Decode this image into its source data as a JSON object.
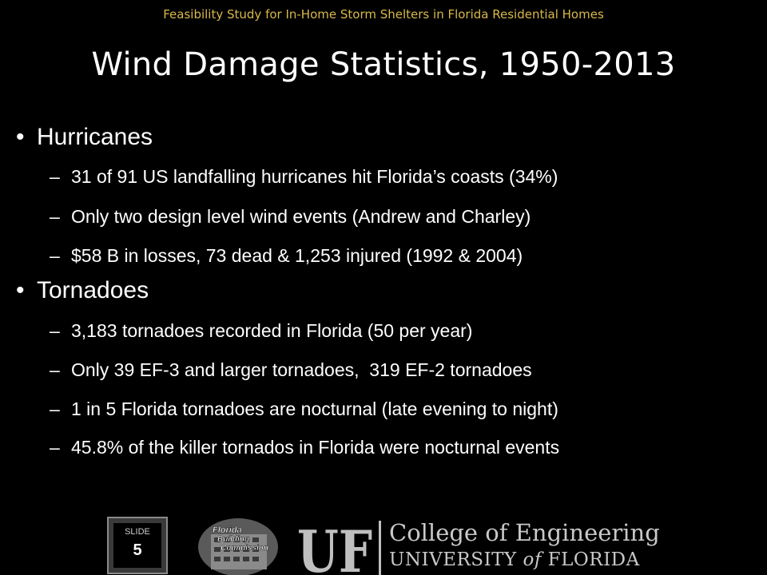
{
  "header": {
    "title": "Feasibility Study for In-Home Storm Shelters in Florida Residential Homes"
  },
  "slide": {
    "title": "Wind Damage Statistics, 1950-2013",
    "bullet_glyph": "•",
    "dash_glyph": "–",
    "sections": [
      {
        "heading": "Hurricanes",
        "items": [
          "31 of 91 US landfalling hurricanes hit Florida’s coasts (34%)",
          "Only two design level wind events (Andrew and Charley)",
          "$58 B in losses, 73 dead & 1,253 injured (1992 & 2004)"
        ]
      },
      {
        "heading": "Tornadoes",
        "items": [
          "3,183 tornadoes recorded in Florida (50 per year)",
          "Only 39 EF-3 and larger tornadoes,  319 EF-2 tornadoes",
          "1 in 5 Florida tornadoes are nocturnal (late evening to night)",
          "45.8% of the killer tornados in Florida were nocturnal events"
        ]
      }
    ]
  },
  "footer": {
    "slide_label": "SLIDE",
    "slide_number": "5",
    "fbc_logo_lines": [
      "Florida",
      "Building",
      "Commission"
    ],
    "uf_mark": "UF",
    "college": "College of Engineering",
    "university_prefix": "UNIVERSITY ",
    "university_of": "of",
    "university_suffix": " FLORIDA"
  },
  "colors": {
    "background": "#000000",
    "header": "#d9b84a",
    "text": "#ffffff",
    "footer_text": "#c8c8c8"
  }
}
